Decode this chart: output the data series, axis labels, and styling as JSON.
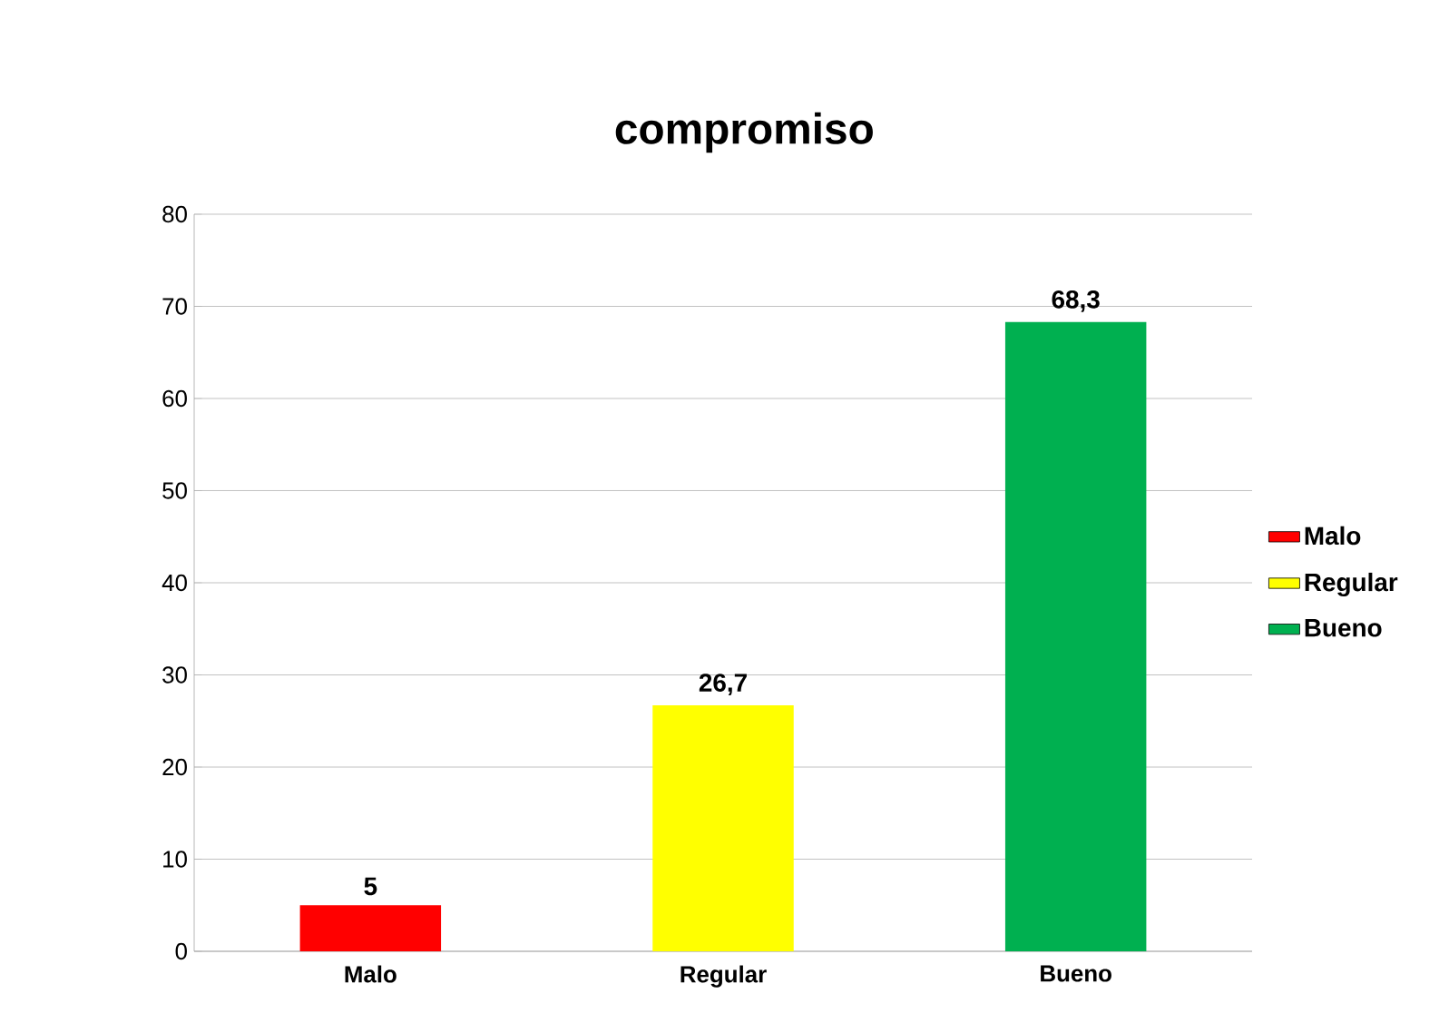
{
  "chart_data": {
    "type": "bar",
    "title": "compromiso",
    "categories": [
      "Malo",
      "Regular",
      "Bueno"
    ],
    "series": [
      {
        "name": "Malo",
        "color": "#ff0000",
        "values": [
          5,
          null,
          null
        ],
        "value_labels": [
          "5",
          null,
          null
        ]
      },
      {
        "name": "Regular",
        "color": "#ffff00",
        "values": [
          null,
          26.7,
          null
        ],
        "value_labels": [
          null,
          "26,7",
          null
        ]
      },
      {
        "name": "Bueno",
        "color": "#00b050",
        "values": [
          null,
          null,
          68.3
        ],
        "value_labels": [
          null,
          null,
          "68,3"
        ]
      }
    ],
    "ylim": [
      0,
      80
    ],
    "yticks": [
      0,
      10,
      20,
      30,
      40,
      50,
      60,
      70,
      80
    ],
    "grid": "y",
    "legend": "right"
  }
}
